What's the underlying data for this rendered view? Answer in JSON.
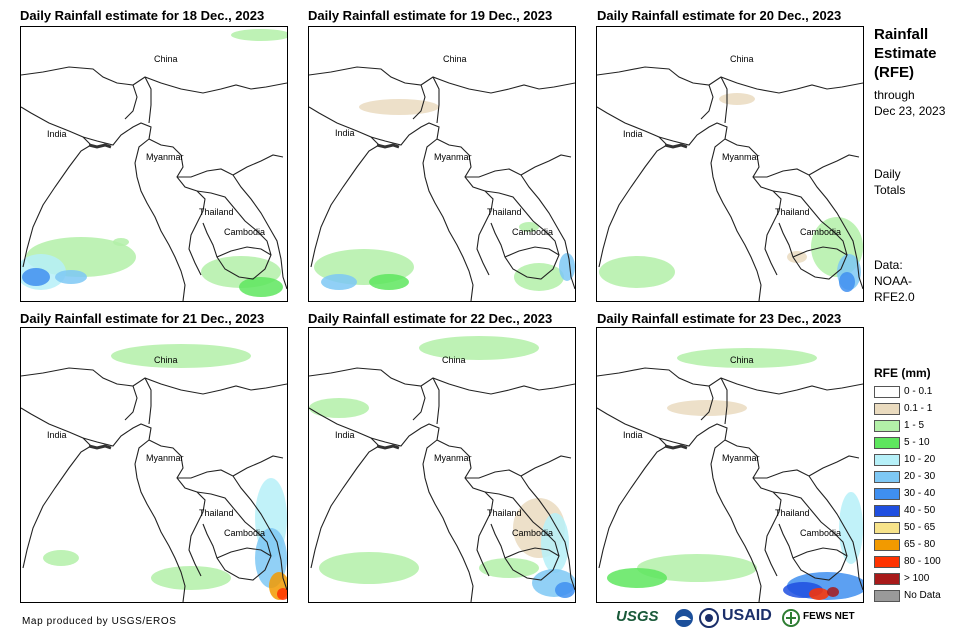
{
  "panels": [
    {
      "title": "Daily Rainfall estimate for 18 Dec., 2023"
    },
    {
      "title": "Daily Rainfall estimate for 19 Dec., 2023"
    },
    {
      "title": "Daily Rainfall estimate for 20 Dec., 2023"
    },
    {
      "title": "Daily Rainfall estimate for 21 Dec., 2023"
    },
    {
      "title": "Daily Rainfall estimate for 22 Dec., 2023"
    },
    {
      "title": "Daily Rainfall estimate for 23 Dec., 2023"
    }
  ],
  "map_labels": {
    "china": "China",
    "india": "India",
    "myanmar": "Myanmar",
    "thailand": "Thailand",
    "cambodia": "Cambodia"
  },
  "sidebar": {
    "title_line1": "Rainfall",
    "title_line2": "Estimate",
    "title_line3": "(RFE)",
    "through": "through",
    "date": "Dec 23, 2023",
    "daily": "Daily",
    "totals": "Totals",
    "data_label": "Data:",
    "data_source1": "NOAA-",
    "data_source2": "RFE2.0"
  },
  "legend": {
    "title": "RFE (mm)",
    "items": [
      {
        "label": "0 - 0.1",
        "color": "#ffffff"
      },
      {
        "label": "0.1 - 1",
        "color": "#eadbbf"
      },
      {
        "label": "1 - 5",
        "color": "#b3f0a8"
      },
      {
        "label": "5 - 10",
        "color": "#5ee65e"
      },
      {
        "label": "10 - 20",
        "color": "#b6f0f8"
      },
      {
        "label": "20 - 30",
        "color": "#7ec8f5"
      },
      {
        "label": "30 - 40",
        "color": "#3f8ff0"
      },
      {
        "label": "40 - 50",
        "color": "#1f4fe0"
      },
      {
        "label": "50 - 65",
        "color": "#f7e38a"
      },
      {
        "label": "65 - 80",
        "color": "#f29a00"
      },
      {
        "label": "80 - 100",
        "color": "#ff3300"
      },
      {
        "label": "> 100",
        "color": "#a81a1a"
      },
      {
        "label": "No Data",
        "color": "#9a9a9a"
      }
    ]
  },
  "footer": {
    "credit": "Map produced by USGS/EROS"
  },
  "logos": {
    "usgs": "USGS",
    "usaid": "USAID",
    "fewsnet": "FEWS NET"
  }
}
